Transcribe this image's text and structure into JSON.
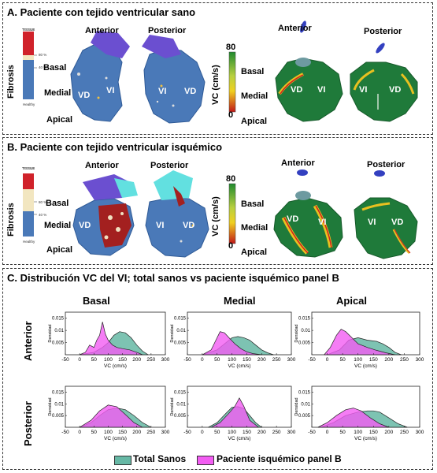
{
  "panelA": {
    "title": "A. Paciente con tejido ventricular sano",
    "anterior": "Anterior",
    "posterior": "Posterior",
    "fibrosis": "Fibrosis",
    "tissue": "TISSUE",
    "pct80": "80 %",
    "pct40": "40 %",
    "healthy": "Healthy",
    "basal": "Basal",
    "medial": "Medial",
    "apical": "Apical",
    "vd": "VD",
    "vi": "VI",
    "vc_label": "VC (cm/s)",
    "cb_max": "80",
    "cb_min": "0"
  },
  "panelB": {
    "title": "B. Paciente con tejido ventricular  isquémico",
    "anterior": "Anterior",
    "posterior": "Posterior",
    "fibrosis": "Fibrosis",
    "tissue": "TISSUE",
    "pct80": "80 %",
    "pct40": "40 %",
    "healthy": "Healthy",
    "basal": "Basal",
    "medial": "Medial",
    "apical": "Apical",
    "vd": "VD",
    "vi": "VI",
    "vc_label": "VC (cm/s)",
    "cb_max": "80",
    "cb_min": "0"
  },
  "panelC": {
    "title": "C. Distribución VC del VI; total sanos vs paciente isquémico panel B",
    "col_basal": "Basal",
    "col_medial": "Medial",
    "col_apical": "Apical",
    "row_anterior": "Anterior",
    "row_posterior": "Posterior",
    "legend_sanos": "Total Sanos",
    "legend_paciente": "Paciente isquémico panel B"
  },
  "colors": {
    "sanos": "#66b8a5",
    "paciente": "#f25cf2",
    "heart_blue": "#4a79b8",
    "heart_green": "#1f7a3a"
  },
  "chart_data": [
    {
      "id": "anterior-basal",
      "type": "area",
      "xlabel": "VC (cm/s)",
      "ylabel": "Densidad",
      "xlim": [
        -50,
        300
      ],
      "ylim": [
        0,
        0.0175
      ],
      "xticks": [
        -50,
        0,
        50,
        100,
        150,
        200,
        250,
        300
      ],
      "yticks": [
        0.005,
        0.01,
        0.015
      ],
      "series": [
        {
          "name": "Total Sanos",
          "x": [
            0,
            50,
            80,
            100,
            120,
            140,
            160,
            180,
            200,
            220,
            240
          ],
          "values": [
            0,
            0.001,
            0.003,
            0.005,
            0.008,
            0.0095,
            0.009,
            0.007,
            0.004,
            0.0015,
            0
          ]
        },
        {
          "name": "Paciente isquémico panel B",
          "x": [
            0,
            20,
            35,
            50,
            60,
            70,
            80,
            90,
            100,
            115,
            130,
            150,
            175,
            200,
            220
          ],
          "values": [
            0,
            0.001,
            0.004,
            0.003,
            0.006,
            0.008,
            0.0135,
            0.0085,
            0.006,
            0.004,
            0.003,
            0.0025,
            0.002,
            0.001,
            0
          ]
        }
      ]
    },
    {
      "id": "anterior-medial",
      "type": "area",
      "xlabel": "VC (cm/s)",
      "ylabel": "Densidad",
      "xlim": [
        -50,
        300
      ],
      "ylim": [
        0,
        0.0175
      ],
      "xticks": [
        -50,
        0,
        50,
        100,
        150,
        200,
        250,
        300
      ],
      "yticks": [
        0.005,
        0.01,
        0.015
      ],
      "series": [
        {
          "name": "Total Sanos",
          "x": [
            0,
            50,
            80,
            100,
            120,
            140,
            160,
            180,
            200,
            220,
            240
          ],
          "values": [
            0,
            0.002,
            0.005,
            0.007,
            0.0075,
            0.007,
            0.006,
            0.004,
            0.002,
            0.0008,
            0
          ]
        },
        {
          "name": "Paciente isquémico panel B",
          "x": [
            0,
            30,
            50,
            60,
            75,
            90,
            110,
            130,
            150,
            170,
            200
          ],
          "values": [
            0,
            0.002,
            0.007,
            0.0095,
            0.009,
            0.007,
            0.0045,
            0.0025,
            0.0012,
            0.0005,
            0
          ]
        }
      ]
    },
    {
      "id": "anterior-apical",
      "type": "area",
      "xlabel": "VC (cm/s)",
      "ylabel": "Densidad",
      "xlim": [
        -50,
        300
      ],
      "ylim": [
        0,
        0.0175
      ],
      "xticks": [
        -50,
        0,
        50,
        100,
        150,
        200,
        250,
        300
      ],
      "yticks": [
        0.005,
        0.01,
        0.015
      ],
      "series": [
        {
          "name": "Total Sanos",
          "x": [
            0,
            40,
            70,
            100,
            130,
            160,
            180,
            200,
            220,
            240
          ],
          "values": [
            0,
            0.002,
            0.006,
            0.007,
            0.006,
            0.0055,
            0.0045,
            0.003,
            0.001,
            0
          ]
        },
        {
          "name": "Paciente isquémico panel B",
          "x": [
            -10,
            10,
            30,
            45,
            60,
            80,
            100,
            130,
            160,
            190,
            220
          ],
          "values": [
            0,
            0.003,
            0.008,
            0.0105,
            0.0095,
            0.007,
            0.0045,
            0.003,
            0.0018,
            0.0008,
            0
          ]
        }
      ]
    },
    {
      "id": "posterior-basal",
      "type": "area",
      "xlabel": "VC (cm/s)",
      "ylabel": "Densidad",
      "xlim": [
        -50,
        300
      ],
      "ylim": [
        0,
        0.0175
      ],
      "xticks": [
        -50,
        0,
        50,
        100,
        150,
        200,
        250,
        300
      ],
      "yticks": [
        0.005,
        0.01,
        0.015
      ],
      "series": [
        {
          "name": "Total Sanos",
          "x": [
            0,
            40,
            70,
            100,
            130,
            160,
            190,
            220,
            250
          ],
          "values": [
            0,
            0.002,
            0.005,
            0.0075,
            0.0082,
            0.0075,
            0.005,
            0.002,
            0
          ]
        },
        {
          "name": "Paciente isquémico panel B",
          "x": [
            0,
            40,
            70,
            100,
            130,
            160,
            190,
            220
          ],
          "values": [
            0,
            0.003,
            0.007,
            0.0095,
            0.0088,
            0.0055,
            0.002,
            0
          ]
        }
      ]
    },
    {
      "id": "posterior-medial",
      "type": "area",
      "xlabel": "VC (cm/s)",
      "ylabel": "Densidad",
      "xlim": [
        -50,
        300
      ],
      "ylim": [
        0,
        0.0175
      ],
      "xticks": [
        -50,
        0,
        50,
        100,
        150,
        200,
        250,
        300
      ],
      "yticks": [
        0.005,
        0.01,
        0.015
      ],
      "series": [
        {
          "name": "Total Sanos",
          "x": [
            20,
            50,
            80,
            100,
            120,
            140,
            160,
            180,
            200
          ],
          "values": [
            0,
            0.002,
            0.006,
            0.0085,
            0.0088,
            0.008,
            0.005,
            0.002,
            0
          ]
        },
        {
          "name": "Paciente isquémico panel B",
          "x": [
            30,
            60,
            90,
            110,
            125,
            140,
            160,
            190
          ],
          "values": [
            0,
            0.002,
            0.006,
            0.009,
            0.0125,
            0.009,
            0.003,
            0
          ]
        }
      ]
    },
    {
      "id": "posterior-apical",
      "type": "area",
      "xlabel": "VC (cm/s)",
      "ylabel": "Densidad",
      "xlim": [
        -50,
        300
      ],
      "ylim": [
        0,
        0.0175
      ],
      "xticks": [
        -50,
        0,
        50,
        100,
        150,
        200,
        250,
        300
      ],
      "yticks": [
        0.005,
        0.01,
        0.015
      ],
      "series": [
        {
          "name": "Total Sanos",
          "x": [
            -20,
            20,
            60,
            100,
            130,
            150,
            170,
            200,
            230,
            260
          ],
          "values": [
            0,
            0.002,
            0.005,
            0.0065,
            0.007,
            0.007,
            0.0065,
            0.004,
            0.0015,
            0
          ]
        },
        {
          "name": "Paciente isquémico panel B",
          "x": [
            -30,
            0,
            30,
            60,
            85,
            110,
            140,
            170,
            200
          ],
          "values": [
            0,
            0.002,
            0.005,
            0.0075,
            0.0082,
            0.007,
            0.004,
            0.0015,
            0
          ]
        }
      ]
    }
  ]
}
